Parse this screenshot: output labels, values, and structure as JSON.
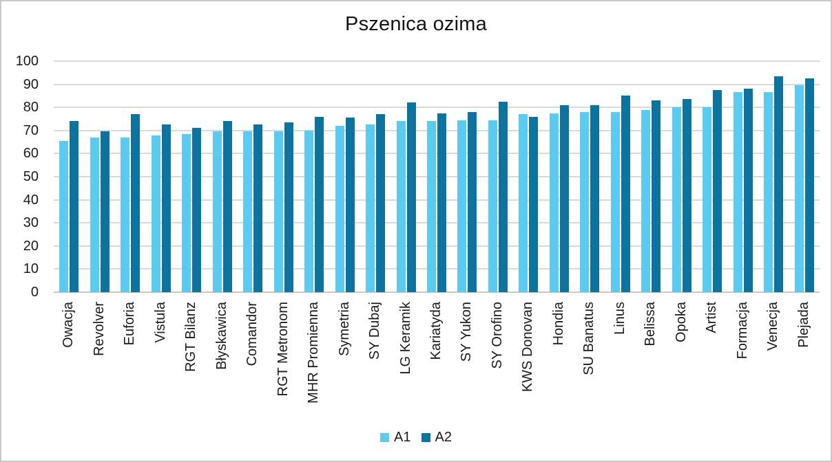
{
  "frame": {
    "background": "#FFFFFF",
    "border_color": "#C9C9C9"
  },
  "chart_data": {
    "type": "bar",
    "title": "Pszenica ozima",
    "xlabel": "",
    "ylabel": "",
    "ylim": [
      0,
      100
    ],
    "ytick_step": 10,
    "ytick_labels": [
      "0",
      "10",
      "20",
      "30",
      "40",
      "50",
      "60",
      "70",
      "80",
      "90",
      "100"
    ],
    "grid": true,
    "gridline_color": "#D9D9D9",
    "axis_line_color": "#C9C7C7",
    "legend_position": "bottom",
    "categories": [
      "Owacja",
      "Revolver",
      "Euforia",
      "Vistula",
      "RGT Bilanz",
      "Błyskawica",
      "Comandor",
      "RGT Metronom",
      "MHR Promienna",
      "Symetria",
      "SY Dubaj",
      "LG Keramik",
      "Kariatyda",
      "SY Yukon",
      "SY Orofino",
      "KWS Donovan",
      "Hondia",
      "SU Banatus",
      "Linus",
      "Belissa",
      "Opoka",
      "Artist",
      "Formacja",
      "Venecja",
      "Plejada"
    ],
    "series": [
      {
        "name": "A1",
        "color": "#5CCBF1",
        "values": [
          65.5,
          67,
          67,
          68,
          68.5,
          69.5,
          69.5,
          69.5,
          70,
          72,
          72.5,
          74,
          74,
          74.5,
          74.5,
          77,
          77.5,
          78,
          78,
          79,
          80,
          80,
          86.5,
          86.5,
          89.5
        ]
      },
      {
        "name": "A2",
        "color": "#0C739E",
        "values": [
          74,
          69.5,
          77,
          72.5,
          71,
          74,
          72.5,
          73.5,
          76,
          75.5,
          77,
          82,
          77.5,
          78,
          82.5,
          76,
          81,
          81,
          85,
          83,
          83.5,
          87.5,
          88,
          93.5,
          92.5
        ]
      }
    ]
  }
}
